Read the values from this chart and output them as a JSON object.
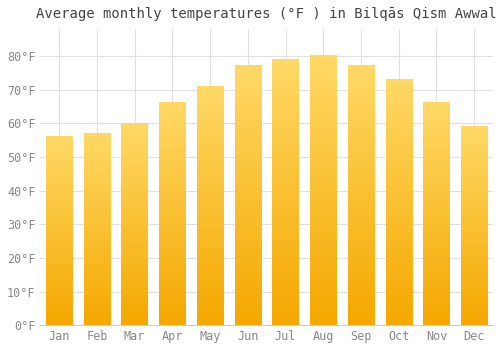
{
  "title": "Average monthly temperatures (°F ) in Bilqās Qism Awwal",
  "months": [
    "Jan",
    "Feb",
    "Mar",
    "Apr",
    "May",
    "Jun",
    "Jul",
    "Aug",
    "Sep",
    "Oct",
    "Nov",
    "Dec"
  ],
  "values": [
    56,
    57,
    60,
    66,
    71,
    77,
    79,
    80,
    77,
    73,
    66,
    59
  ],
  "bar_color_bottom": "#F5A800",
  "bar_color_top": "#FFD966",
  "ylim": [
    0,
    88
  ],
  "yticks": [
    0,
    10,
    20,
    30,
    40,
    50,
    60,
    70,
    80
  ],
  "ytick_labels": [
    "0°F",
    "10°F",
    "20°F",
    "30°F",
    "40°F",
    "50°F",
    "60°F",
    "70°F",
    "80°F"
  ],
  "background_color": "#FFFFFF",
  "grid_color": "#E0E0E0",
  "title_fontsize": 10,
  "tick_fontsize": 8.5,
  "bar_width": 0.7
}
